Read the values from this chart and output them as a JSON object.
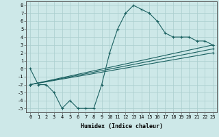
{
  "xlabel": "Humidex (Indice chaleur)",
  "xlim": [
    -0.5,
    23.5
  ],
  "ylim": [
    -5.5,
    8.5
  ],
  "xticks": [
    0,
    1,
    2,
    3,
    4,
    5,
    6,
    7,
    8,
    9,
    10,
    11,
    12,
    13,
    14,
    15,
    16,
    17,
    18,
    19,
    20,
    21,
    22,
    23
  ],
  "yticks": [
    -5,
    -4,
    -3,
    -2,
    -1,
    0,
    1,
    2,
    3,
    4,
    5,
    6,
    7,
    8
  ],
  "background_color": "#cde8e8",
  "grid_color": "#aacece",
  "line_color": "#1a6060",
  "line1_x": [
    0,
    1,
    2,
    3,
    4,
    5,
    6,
    7,
    8,
    9,
    10,
    11,
    12,
    13,
    14,
    15,
    16,
    17,
    18,
    19,
    20,
    21,
    22,
    23
  ],
  "line1_y": [
    0,
    -2,
    -2,
    -3,
    -5,
    -4,
    -5,
    -5,
    -5,
    -2,
    2,
    5,
    7,
    8,
    7.5,
    7,
    6,
    4.5,
    4,
    4,
    4,
    3.5,
    3.5,
    3
  ],
  "line2_x": [
    0,
    23
  ],
  "line2_y": [
    -2,
    3.0
  ],
  "line3_x": [
    0,
    23
  ],
  "line3_y": [
    -2,
    2.0
  ],
  "line4_x": [
    0,
    23
  ],
  "line4_y": [
    -2,
    2.5
  ],
  "tick_fontsize": 5,
  "xlabel_fontsize": 6,
  "lw": 0.8,
  "ms": 3.0
}
